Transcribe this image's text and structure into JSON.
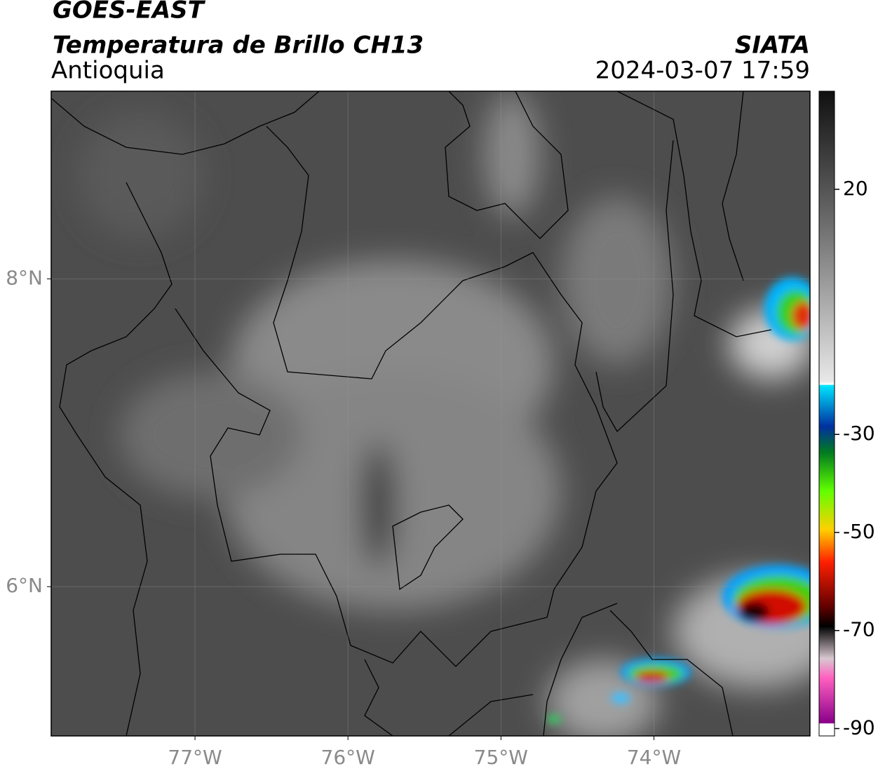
{
  "header": {
    "title": "GOES-EAST",
    "subtitle": "Temperatura de Brillo CH13",
    "region": "Antioquia",
    "source": "SIATA",
    "datetime": "2024-03-07 17:59"
  },
  "map": {
    "xlim": [
      -77.94,
      -72.98
    ],
    "ylim": [
      5.03,
      9.22
    ],
    "xticks": [
      {
        "value": -77,
        "label": "77°W"
      },
      {
        "value": -76,
        "label": "76°W"
      },
      {
        "value": -75,
        "label": "75°W"
      },
      {
        "value": -74,
        "label": "74°W"
      }
    ],
    "yticks": [
      {
        "value": 6,
        "label": "6°N"
      },
      {
        "value": 8,
        "label": "8°N"
      }
    ],
    "grid": true
  },
  "colorbar": {
    "clim": [
      -91.5,
      40
    ],
    "ticks": [
      20,
      -30,
      -50,
      -70,
      -90
    ]
  }
}
